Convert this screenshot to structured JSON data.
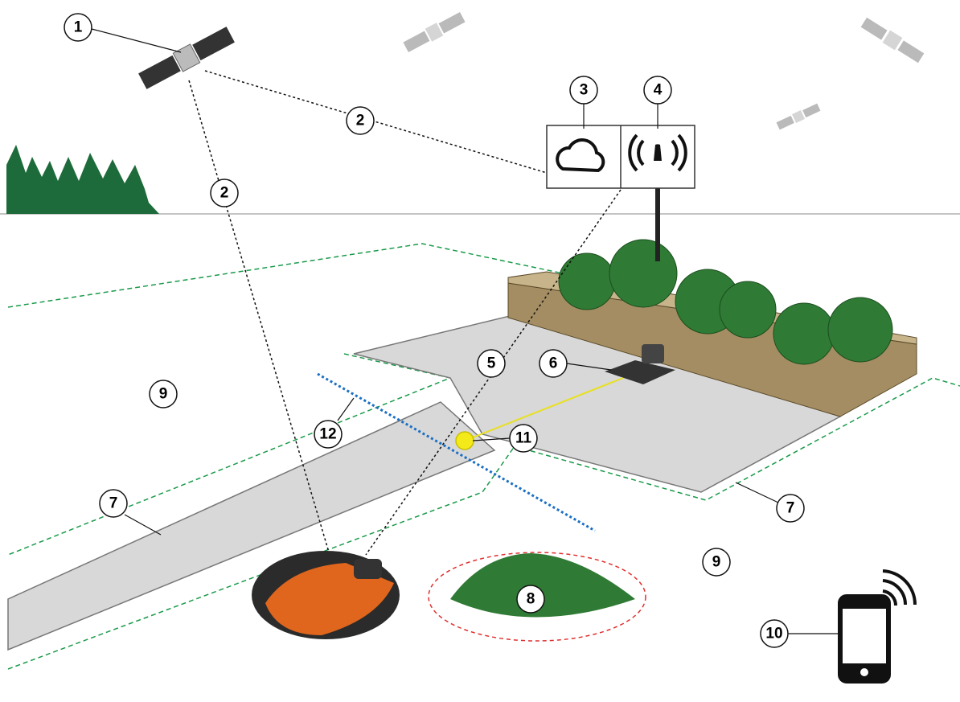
{
  "callouts": [
    {
      "label": "1"
    },
    {
      "label": "2"
    },
    {
      "label": "2"
    },
    {
      "label": "3"
    },
    {
      "label": "4"
    },
    {
      "label": "5"
    },
    {
      "label": "6"
    },
    {
      "label": "7"
    },
    {
      "label": "7"
    },
    {
      "label": "8"
    },
    {
      "label": "9"
    },
    {
      "label": "9"
    },
    {
      "label": "10"
    },
    {
      "label": "11"
    },
    {
      "label": "12"
    }
  ]
}
